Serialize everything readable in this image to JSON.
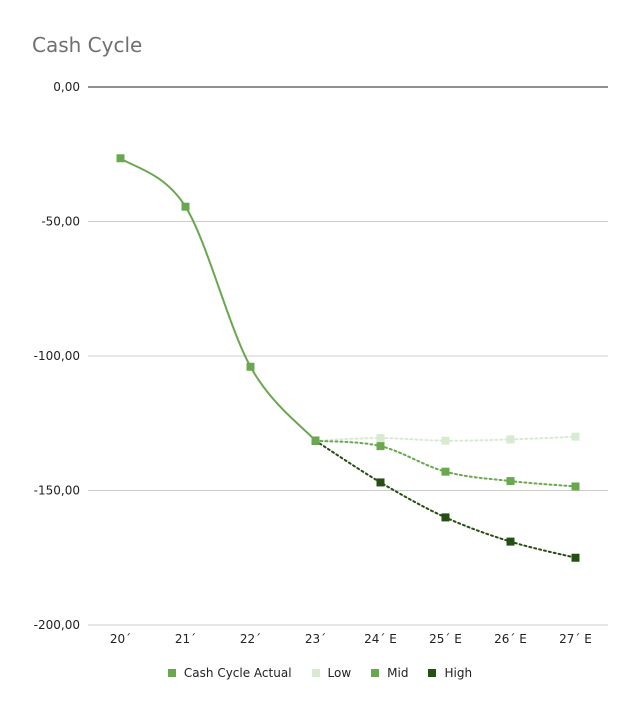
{
  "chart_data": {
    "type": "line",
    "title": "Cash Cycle",
    "categories": [
      "20´",
      "21´",
      "22´",
      "23´",
      "24´ E",
      "25´ E",
      "26´ E",
      "27´ E"
    ],
    "ylim": [
      -200,
      0
    ],
    "yticks": [
      0,
      -50,
      -100,
      -150,
      -200
    ],
    "ytick_labels": [
      "0,00",
      "-50,00",
      "-100,00",
      "-150,00",
      "-200,00"
    ],
    "grid": true,
    "legend_position": "bottom",
    "series": [
      {
        "name": "Cash Cycle Actual",
        "color": "#6aa84f",
        "style": "solid",
        "values": [
          -26.5,
          -44.5,
          -104,
          -131.5,
          null,
          null,
          null,
          null
        ]
      },
      {
        "name": "Low",
        "color": "#d9ead3",
        "style": "dotted",
        "values": [
          null,
          null,
          null,
          -131.5,
          -130.5,
          -131.5,
          -131,
          -130
        ]
      },
      {
        "name": "Mid",
        "color": "#6aa84f",
        "style": "dotted",
        "values": [
          null,
          null,
          null,
          -131.5,
          -133.5,
          -143,
          -146.5,
          -148.5
        ]
      },
      {
        "name": "High",
        "color": "#274e13",
        "style": "dotted",
        "values": [
          null,
          null,
          null,
          -131.5,
          -147,
          -160,
          -169,
          -175
        ]
      }
    ]
  }
}
